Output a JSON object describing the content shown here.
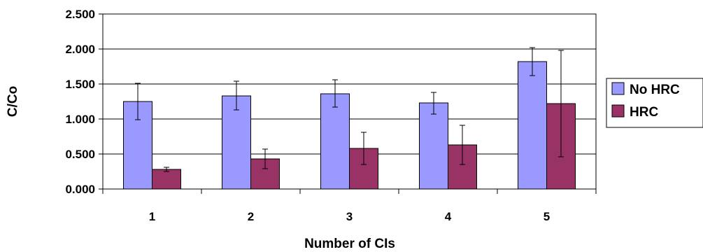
{
  "chart_data": {
    "type": "bar",
    "title": "",
    "xlabel": "Number of CIs",
    "ylabel": "C/Co",
    "ylim": [
      0,
      2.5
    ],
    "yticks": [
      "0.000",
      "0.500",
      "1.000",
      "1.500",
      "2.000",
      "2.500"
    ],
    "categories": [
      "1",
      "2",
      "3",
      "4",
      "5"
    ],
    "series": [
      {
        "name": "No HRC",
        "color": "#9999ff",
        "values": [
          1.25,
          1.33,
          1.36,
          1.23,
          1.82
        ],
        "error_low": [
          0.99,
          1.13,
          1.17,
          1.07,
          1.62
        ],
        "error_high": [
          1.51,
          1.54,
          1.56,
          1.38,
          2.02
        ]
      },
      {
        "name": "HRC",
        "color": "#993366",
        "values": [
          0.28,
          0.43,
          0.58,
          0.63,
          1.22
        ],
        "error_low": [
          0.25,
          0.29,
          0.35,
          0.35,
          0.46
        ],
        "error_high": [
          0.31,
          0.57,
          0.81,
          0.91,
          1.98
        ]
      }
    ],
    "grid": true,
    "legend": "right"
  }
}
